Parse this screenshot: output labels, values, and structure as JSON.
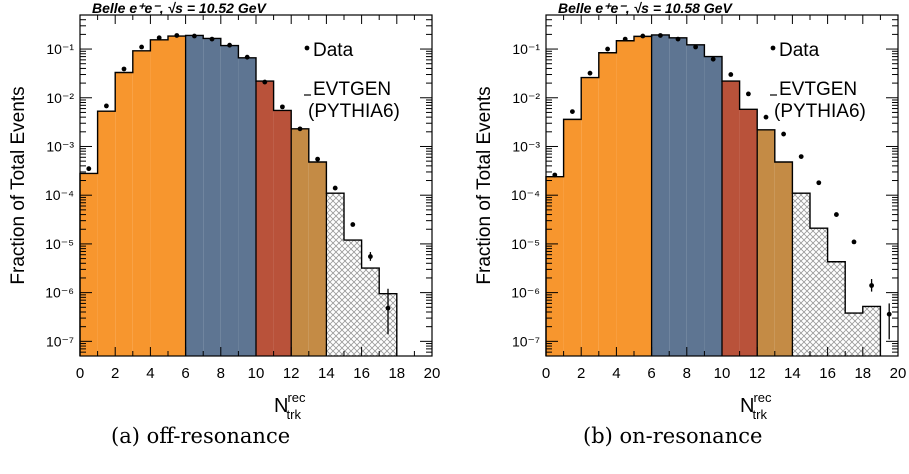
{
  "colors": {
    "orange": "#f7962e",
    "slate": "#5e7592",
    "red": "#b9523a",
    "tan": "#c48b45",
    "hatch": "#9a9a9a"
  },
  "captions": [
    "(a) off-resonance",
    "(b) on-resonance"
  ],
  "chart_data": [
    {
      "type": "bar",
      "title_prefix": "Belle e⁺e⁻,",
      "title_energy": "√s = 10.52 GeV",
      "xlabel": "N",
      "xlabel_sub": "trk",
      "xlabel_sup": "rec",
      "ylabel": "Fraction of Total Events",
      "yscale": "log",
      "ylim": [
        5e-08,
        0.5
      ],
      "xlim": [
        0,
        20
      ],
      "xticks": [
        "0",
        "2",
        "4",
        "6",
        "8",
        "10",
        "12",
        "14",
        "16",
        "18",
        "20"
      ],
      "yticks": [
        "10⁻⁷",
        "10⁻⁶",
        "10⁻⁵",
        "10⁻⁴",
        "10⁻³",
        "10⁻²",
        "10⁻¹"
      ],
      "legend": {
        "data": "Data",
        "mc_line1": "EVTGEN",
        "mc_line2": "(PYTHIA6)"
      },
      "bins": [
        0,
        1,
        2,
        3,
        4,
        5,
        6,
        7,
        8,
        9,
        10,
        11,
        12,
        13,
        14,
        15,
        16,
        17,
        18
      ],
      "mc": [
        0.00028,
        0.0053,
        0.033,
        0.092,
        0.155,
        0.185,
        0.19,
        0.165,
        0.118,
        0.066,
        0.022,
        0.0055,
        0.0023,
        0.00048,
        0.00011,
        1.2e-05,
        3.2e-06,
        9.5e-07
      ],
      "data": [
        {
          "x": 0.5,
          "y": 0.00035
        },
        {
          "x": 1.5,
          "y": 0.0068
        },
        {
          "x": 2.5,
          "y": 0.039
        },
        {
          "x": 3.5,
          "y": 0.11
        },
        {
          "x": 4.5,
          "y": 0.17
        },
        {
          "x": 5.5,
          "y": 0.19
        },
        {
          "x": 6.5,
          "y": 0.185
        },
        {
          "x": 7.5,
          "y": 0.16
        },
        {
          "x": 8.5,
          "y": 0.12
        },
        {
          "x": 9.5,
          "y": 0.068
        },
        {
          "x": 10.5,
          "y": 0.021
        },
        {
          "x": 11.5,
          "y": 0.0065
        },
        {
          "x": 12.5,
          "y": 0.0023
        },
        {
          "x": 13.5,
          "y": 0.00055
        },
        {
          "x": 14.5,
          "y": 0.00014
        },
        {
          "x": 15.5,
          "y": 2.5e-05
        },
        {
          "x": 16.5,
          "y": 5.5e-06,
          "lo": 4.5e-06,
          "hi": 6.8e-06
        },
        {
          "x": 17.5,
          "y": 4.8e-07,
          "lo": 1.4e-07,
          "hi": 1.2e-06
        }
      ],
      "bands": [
        {
          "from": 0,
          "to": 6,
          "fill": "orange"
        },
        {
          "from": 6,
          "to": 10,
          "fill": "slate"
        },
        {
          "from": 10,
          "to": 12,
          "fill": "red"
        },
        {
          "from": 12,
          "to": 14,
          "fill": "tan"
        },
        {
          "from": 14,
          "to": 18,
          "fill": "hatch"
        }
      ]
    },
    {
      "type": "bar",
      "title_prefix": "Belle e⁺e⁻,",
      "title_energy": "√s = 10.58 GeV",
      "xlabel": "N",
      "xlabel_sub": "trk",
      "xlabel_sup": "rec",
      "ylabel": "Fraction of Total Events",
      "yscale": "log",
      "ylim": [
        5e-08,
        0.5
      ],
      "xlim": [
        0,
        20
      ],
      "xticks": [
        "0",
        "2",
        "4",
        "6",
        "8",
        "10",
        "12",
        "14",
        "16",
        "18",
        "20"
      ],
      "yticks": [
        "10⁻⁷",
        "10⁻⁶",
        "10⁻⁵",
        "10⁻⁴",
        "10⁻³",
        "10⁻²",
        "10⁻¹"
      ],
      "legend": {
        "data": "Data",
        "mc_line1": "EVTGEN",
        "mc_line2": "(PYTHIA6)"
      },
      "bins": [
        0,
        1,
        2,
        3,
        4,
        5,
        6,
        7,
        8,
        9,
        10,
        11,
        12,
        13,
        14,
        15,
        16,
        17,
        18,
        19
      ],
      "mc": [
        0.00024,
        0.0036,
        0.026,
        0.084,
        0.148,
        0.182,
        0.195,
        0.17,
        0.122,
        0.07,
        0.022,
        0.0058,
        0.0022,
        0.00048,
        0.00011,
        2.1e-05,
        4.3e-06,
        3.8e-07,
        5.2e-07
      ],
      "data": [
        {
          "x": 0.5,
          "y": 0.00026
        },
        {
          "x": 1.5,
          "y": 0.0052
        },
        {
          "x": 2.5,
          "y": 0.032
        },
        {
          "x": 3.5,
          "y": 0.1
        },
        {
          "x": 4.5,
          "y": 0.16
        },
        {
          "x": 5.5,
          "y": 0.185
        },
        {
          "x": 6.5,
          "y": 0.19
        },
        {
          "x": 7.5,
          "y": 0.16
        },
        {
          "x": 8.5,
          "y": 0.11
        },
        {
          "x": 9.5,
          "y": 0.062
        },
        {
          "x": 10.5,
          "y": 0.03
        },
        {
          "x": 11.5,
          "y": 0.012
        },
        {
          "x": 12.5,
          "y": 0.004
        },
        {
          "x": 13.5,
          "y": 0.0018
        },
        {
          "x": 14.5,
          "y": 0.00062
        },
        {
          "x": 15.5,
          "y": 0.00018
        },
        {
          "x": 16.5,
          "y": 4e-05
        },
        {
          "x": 17.5,
          "y": 1.1e-05
        },
        {
          "x": 18.5,
          "y": 1.4e-06,
          "lo": 1.05e-06,
          "hi": 1.9e-06
        },
        {
          "x": 19.5,
          "y": 3.6e-07,
          "lo": 1.1e-07,
          "hi": 6e-07
        }
      ],
      "bands": [
        {
          "from": 0,
          "to": 6,
          "fill": "orange"
        },
        {
          "from": 6,
          "to": 10,
          "fill": "slate"
        },
        {
          "from": 10,
          "to": 12,
          "fill": "red"
        },
        {
          "from": 12,
          "to": 14,
          "fill": "tan"
        },
        {
          "from": 14,
          "to": 19,
          "fill": "hatch"
        }
      ]
    }
  ]
}
